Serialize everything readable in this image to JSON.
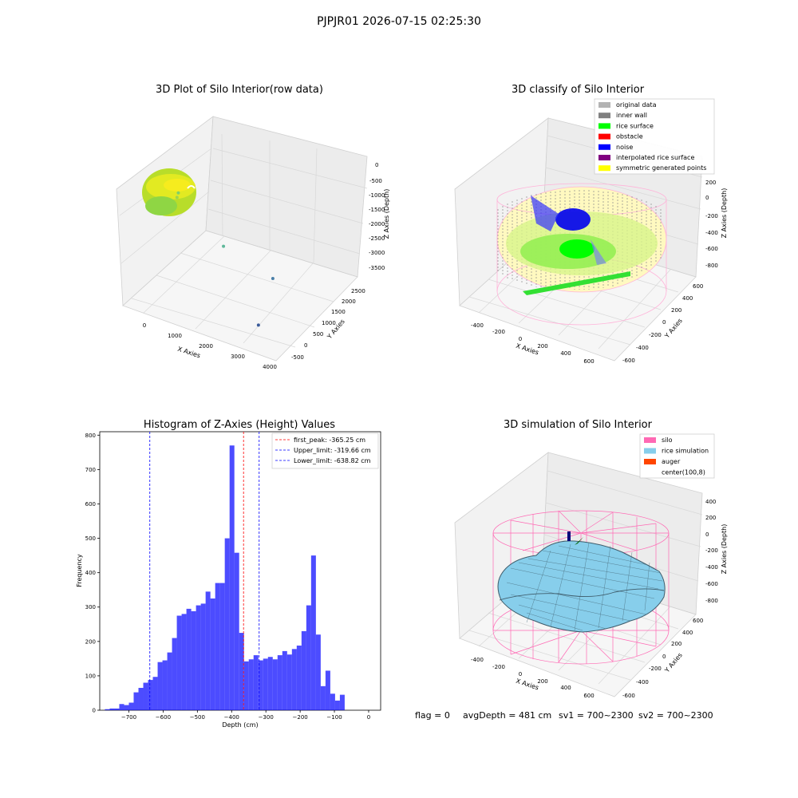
{
  "suptitle": "PJPJR01 2026-07-15 02:25:30",
  "status": {
    "flag": "flag = 0",
    "avg": "avgDepth = 481 cm",
    "sv1": "sv1 = 700~2300",
    "sv2": "sv2 = 700~2300"
  },
  "chart_data": [
    {
      "type": "scatter",
      "title": "3D Plot of Silo Interior(row data)",
      "xlabel": "X Axies",
      "ylabel": "Y Axies",
      "zlabel": "Z Axies (Depth)",
      "x_ticks": [
        "0",
        "1000",
        "2000",
        "3000",
        "4000"
      ],
      "y_ticks": [
        "-500",
        "0",
        "500",
        "1000",
        "1500",
        "2000",
        "2500"
      ],
      "z_ticks": [
        "0",
        "-500",
        "-1000",
        "-1500",
        "-2000",
        "-2500",
        "-3000",
        "-3500"
      ],
      "xlim": [
        -500,
        4000
      ],
      "ylim": [
        -600,
        2700
      ],
      "zlim": [
        -3700,
        100
      ],
      "colormap": "viridis",
      "outliers": [
        {
          "x": 800,
          "y": 400,
          "z": -700
        },
        {
          "x": 900,
          "y": 300,
          "z": -500
        },
        {
          "x": 2100,
          "y": 700,
          "z": -1800
        },
        {
          "x": 3200,
          "y": 1500,
          "z": -2800
        },
        {
          "x": 3500,
          "y": 200,
          "z": -3200
        }
      ]
    },
    {
      "type": "scatter",
      "title": "3D classify of Silo Interior",
      "xlabel": "X Axies",
      "ylabel": "Y Axies",
      "zlabel": "Z Axies (Depth)",
      "x_ticks": [
        "-400",
        "-200",
        "0",
        "200",
        "400",
        "600"
      ],
      "y_ticks": [
        "-600",
        "-400",
        "-200",
        "0",
        "200",
        "400",
        "600"
      ],
      "z_ticks": [
        "200",
        "0",
        "-200",
        "-400",
        "-600",
        "-800"
      ],
      "legend": [
        {
          "label": "original data",
          "color": "#b3b3b3"
        },
        {
          "label": "inner wall",
          "color": "#808080"
        },
        {
          "label": "rice surface",
          "color": "#00ff00"
        },
        {
          "label": "obstacle",
          "color": "#ff0000"
        },
        {
          "label": "noise",
          "color": "#0000ff"
        },
        {
          "label": "interpolated rice surface",
          "color": "#800080"
        },
        {
          "label": "symmetric generated points",
          "color": "#ffff00"
        }
      ],
      "legend_loc": "upper right"
    },
    {
      "type": "bar",
      "title": "Histogram of Z-Axies (Height) Values",
      "xlabel": "Depth (cm)",
      "ylabel": "Frequency",
      "xlim": [
        -785,
        35
      ],
      "ylim": [
        0,
        810
      ],
      "x_ticks": [
        -700,
        -600,
        -500,
        -400,
        -300,
        -200,
        -100,
        0
      ],
      "y_ticks": [
        0,
        100,
        200,
        300,
        400,
        500,
        600,
        700,
        800
      ],
      "bin_start": -770,
      "bin_width": 14,
      "counts": [
        3,
        5,
        5,
        18,
        15,
        22,
        52,
        65,
        80,
        88,
        97,
        140,
        145,
        168,
        210,
        275,
        280,
        295,
        288,
        305,
        310,
        345,
        325,
        370,
        370,
        500,
        770,
        458,
        225,
        142,
        148,
        160,
        145,
        150,
        155,
        148,
        160,
        172,
        162,
        178,
        188,
        230,
        305,
        450,
        220,
        70,
        115,
        48,
        28,
        45
      ],
      "bar_color": "#0000ff",
      "vlines": [
        {
          "label": "first_peak: -365.25 cm",
          "x": -365.25,
          "color": "#ff0000"
        },
        {
          "label": "Upper_limit: -319.66 cm",
          "x": -319.66,
          "color": "#0000ff"
        },
        {
          "label": "Lower_limit: -638.82 cm",
          "x": -638.82,
          "color": "#0000ff"
        }
      ],
      "legend_loc": "upper right"
    },
    {
      "type": "surface",
      "title": "3D simulation of Silo Interior",
      "xlabel": "X Axies",
      "ylabel": "Y Axies",
      "zlabel": "Z Axies (Depth)",
      "x_ticks": [
        "-400",
        "-200",
        "0",
        "200",
        "400",
        "600"
      ],
      "y_ticks": [
        "-600",
        "-400",
        "-200",
        "0",
        "200",
        "400",
        "600"
      ],
      "z_ticks": [
        "400",
        "200",
        "0",
        "-200",
        "-400",
        "-600",
        "-800"
      ],
      "legend": [
        {
          "label": "silo",
          "color": "#ff69b4"
        },
        {
          "label": "rice simulation",
          "color": "#87ceeb"
        },
        {
          "label": "auger",
          "color": "#ff4500"
        },
        {
          "label": "center(100,8)",
          "color": "none"
        }
      ],
      "legend_loc": "upper right"
    }
  ]
}
